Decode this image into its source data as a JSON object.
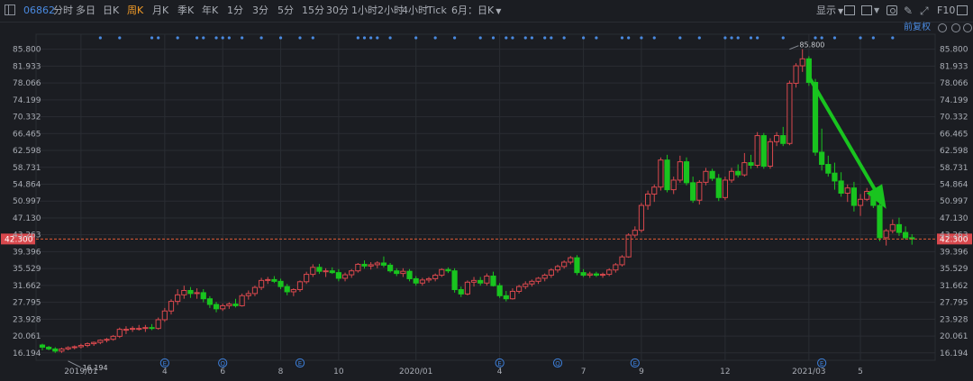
{
  "toolbar": {
    "code": "06862",
    "periods": [
      "分时",
      "多日",
      "日K",
      "周K",
      "月K",
      "季K",
      "年K",
      "1分",
      "3分",
      "5分",
      "15分",
      "30分",
      "1小时",
      "2小时",
      "4小时",
      "Tick"
    ],
    "active_period": "周K",
    "range_label": "6月：日K",
    "display_label": "显示",
    "f10_label": "F10",
    "fq_label": "前复权"
  },
  "chart_data": {
    "type": "candlestick",
    "title": "",
    "xlabel": "",
    "ylabel": "",
    "ylim": [
      14.5,
      88.0
    ],
    "y_ticks": [
      85.8,
      81.933,
      78.066,
      74.199,
      70.332,
      66.465,
      62.598,
      58.731,
      54.864,
      50.997,
      47.13,
      43.263,
      39.396,
      35.529,
      31.662,
      27.795,
      23.928,
      20.061,
      16.194
    ],
    "y_tick_labels": [
      "85.800",
      "81.933",
      "78.066",
      "74.199",
      "70.332",
      "66.465",
      "62.598",
      "58.731",
      "54.864",
      "50.997",
      "47.130",
      "43.263",
      "39.396",
      "35.529",
      "31.662",
      "27.795",
      "23.928",
      "20.061",
      "16.194"
    ],
    "x_ticks": [
      {
        "label": "2019/01",
        "week": 6
      },
      {
        "label": "4",
        "week": 19
      },
      {
        "label": "6",
        "week": 28
      },
      {
        "label": "8",
        "week": 37
      },
      {
        "label": "10",
        "week": 46
      },
      {
        "label": "2020/01",
        "week": 58
      },
      {
        "label": "4",
        "week": 71
      },
      {
        "label": "7",
        "week": 84
      },
      {
        "label": "9",
        "week": 93
      },
      {
        "label": "12",
        "week": 106
      },
      {
        "label": "2021/03",
        "week": 119
      },
      {
        "label": "5",
        "week": 127
      }
    ],
    "current_price": 42.3,
    "current_price_label": "42.300",
    "max_annotation": {
      "label": "85.800",
      "week": 116,
      "value": 85.8
    },
    "min_annotation": {
      "label": "16.194",
      "week": 4,
      "value": 16.194
    },
    "event_markers": [
      {
        "type": "E",
        "week": 19
      },
      {
        "type": "Q",
        "week": 28
      },
      {
        "type": "E",
        "week": 40
      },
      {
        "type": "E",
        "week": 71
      },
      {
        "type": "Q",
        "week": 80
      },
      {
        "type": "E",
        "week": 92
      },
      {
        "type": "E",
        "week": 121
      }
    ],
    "dividend_markers": [
      9,
      12,
      17,
      18,
      21,
      24,
      25,
      27,
      28,
      29,
      31,
      34,
      37,
      40,
      42,
      49,
      50,
      51,
      52,
      54,
      58,
      61,
      64,
      68,
      70,
      72,
      73,
      75,
      76,
      78,
      79,
      81,
      84,
      86,
      90,
      91,
      93,
      95,
      99,
      102,
      106,
      107,
      108,
      110,
      111,
      115,
      120,
      121,
      123,
      127,
      129,
      132
    ],
    "candles": [
      {
        "o": 18.0,
        "h": 18.3,
        "l": 16.8,
        "c": 17.5
      },
      {
        "o": 17.5,
        "h": 17.8,
        "l": 16.8,
        "c": 17.1
      },
      {
        "o": 17.1,
        "h": 17.5,
        "l": 16.2,
        "c": 16.6
      },
      {
        "o": 16.6,
        "h": 17.4,
        "l": 16.2,
        "c": 17.1
      },
      {
        "o": 17.1,
        "h": 17.7,
        "l": 16.8,
        "c": 17.4
      },
      {
        "o": 17.4,
        "h": 17.9,
        "l": 17.0,
        "c": 17.6
      },
      {
        "o": 17.6,
        "h": 18.3,
        "l": 17.2,
        "c": 17.9
      },
      {
        "o": 17.9,
        "h": 18.6,
        "l": 17.5,
        "c": 18.3
      },
      {
        "o": 18.3,
        "h": 18.8,
        "l": 17.8,
        "c": 18.6
      },
      {
        "o": 18.6,
        "h": 19.3,
        "l": 18.2,
        "c": 19.1
      },
      {
        "o": 19.1,
        "h": 19.6,
        "l": 18.6,
        "c": 19.3
      },
      {
        "o": 19.3,
        "h": 20.3,
        "l": 19.0,
        "c": 20.0
      },
      {
        "o": 20.0,
        "h": 22.0,
        "l": 19.6,
        "c": 21.6
      },
      {
        "o": 21.6,
        "h": 22.3,
        "l": 20.5,
        "c": 21.6
      },
      {
        "o": 21.6,
        "h": 22.3,
        "l": 21.0,
        "c": 21.8
      },
      {
        "o": 21.8,
        "h": 22.6,
        "l": 21.3,
        "c": 21.8
      },
      {
        "o": 21.8,
        "h": 22.6,
        "l": 21.0,
        "c": 22.0
      },
      {
        "o": 22.0,
        "h": 22.8,
        "l": 21.4,
        "c": 21.8
      },
      {
        "o": 21.8,
        "h": 24.3,
        "l": 21.5,
        "c": 23.8
      },
      {
        "o": 23.8,
        "h": 26.5,
        "l": 23.3,
        "c": 25.8
      },
      {
        "o": 25.8,
        "h": 28.5,
        "l": 25.0,
        "c": 28.0
      },
      {
        "o": 28.0,
        "h": 30.8,
        "l": 27.2,
        "c": 29.5
      },
      {
        "o": 29.5,
        "h": 31.6,
        "l": 28.6,
        "c": 30.5
      },
      {
        "o": 30.5,
        "h": 31.3,
        "l": 28.8,
        "c": 29.8
      },
      {
        "o": 29.8,
        "h": 31.0,
        "l": 28.6,
        "c": 30.0
      },
      {
        "o": 30.0,
        "h": 30.8,
        "l": 27.8,
        "c": 28.6
      },
      {
        "o": 28.6,
        "h": 29.2,
        "l": 26.5,
        "c": 27.3
      },
      {
        "o": 27.3,
        "h": 27.9,
        "l": 25.5,
        "c": 26.3
      },
      {
        "o": 26.3,
        "h": 27.5,
        "l": 25.8,
        "c": 27.0
      },
      {
        "o": 27.0,
        "h": 27.8,
        "l": 26.3,
        "c": 27.4
      },
      {
        "o": 27.4,
        "h": 28.6,
        "l": 26.6,
        "c": 27.0
      },
      {
        "o": 27.0,
        "h": 29.8,
        "l": 26.8,
        "c": 29.3
      },
      {
        "o": 29.3,
        "h": 30.5,
        "l": 28.4,
        "c": 29.8
      },
      {
        "o": 29.8,
        "h": 31.6,
        "l": 29.2,
        "c": 31.2
      },
      {
        "o": 31.2,
        "h": 33.4,
        "l": 30.6,
        "c": 32.8
      },
      {
        "o": 32.8,
        "h": 33.6,
        "l": 32.0,
        "c": 33.0
      },
      {
        "o": 33.0,
        "h": 33.8,
        "l": 32.2,
        "c": 32.6
      },
      {
        "o": 32.6,
        "h": 33.2,
        "l": 30.8,
        "c": 31.4
      },
      {
        "o": 31.4,
        "h": 32.0,
        "l": 29.4,
        "c": 30.2
      },
      {
        "o": 30.2,
        "h": 31.0,
        "l": 29.2,
        "c": 30.7
      },
      {
        "o": 30.7,
        "h": 32.8,
        "l": 30.2,
        "c": 32.5
      },
      {
        "o": 32.5,
        "h": 34.8,
        "l": 32.0,
        "c": 34.2
      },
      {
        "o": 34.2,
        "h": 36.5,
        "l": 33.6,
        "c": 35.8
      },
      {
        "o": 35.8,
        "h": 36.6,
        "l": 34.3,
        "c": 34.9
      },
      {
        "o": 34.9,
        "h": 35.6,
        "l": 33.6,
        "c": 35.0
      },
      {
        "o": 35.0,
        "h": 35.8,
        "l": 34.3,
        "c": 34.6
      },
      {
        "o": 34.6,
        "h": 35.4,
        "l": 32.6,
        "c": 33.3
      },
      {
        "o": 33.3,
        "h": 34.6,
        "l": 32.6,
        "c": 34.1
      },
      {
        "o": 34.1,
        "h": 35.4,
        "l": 33.4,
        "c": 35.0
      },
      {
        "o": 35.0,
        "h": 36.8,
        "l": 34.6,
        "c": 36.5
      },
      {
        "o": 36.5,
        "h": 37.4,
        "l": 35.5,
        "c": 36.1
      },
      {
        "o": 36.1,
        "h": 37.0,
        "l": 35.3,
        "c": 36.4
      },
      {
        "o": 36.4,
        "h": 37.2,
        "l": 35.6,
        "c": 36.8
      },
      {
        "o": 36.8,
        "h": 38.3,
        "l": 35.8,
        "c": 36.3
      },
      {
        "o": 36.3,
        "h": 36.8,
        "l": 34.6,
        "c": 35.0
      },
      {
        "o": 35.0,
        "h": 35.6,
        "l": 33.8,
        "c": 34.4
      },
      {
        "o": 34.4,
        "h": 35.6,
        "l": 33.6,
        "c": 34.9
      },
      {
        "o": 34.9,
        "h": 35.4,
        "l": 32.6,
        "c": 33.2
      },
      {
        "o": 33.2,
        "h": 33.8,
        "l": 31.6,
        "c": 32.2
      },
      {
        "o": 32.2,
        "h": 33.4,
        "l": 31.6,
        "c": 32.9
      },
      {
        "o": 32.9,
        "h": 33.6,
        "l": 32.3,
        "c": 33.2
      },
      {
        "o": 33.2,
        "h": 34.4,
        "l": 32.6,
        "c": 34.0
      },
      {
        "o": 34.0,
        "h": 35.6,
        "l": 33.6,
        "c": 35.3
      },
      {
        "o": 35.3,
        "h": 35.8,
        "l": 34.5,
        "c": 35.0
      },
      {
        "o": 35.0,
        "h": 35.6,
        "l": 30.0,
        "c": 30.7
      },
      {
        "o": 30.7,
        "h": 31.4,
        "l": 29.0,
        "c": 29.7
      },
      {
        "o": 29.7,
        "h": 32.8,
        "l": 29.4,
        "c": 32.4
      },
      {
        "o": 32.4,
        "h": 33.6,
        "l": 31.4,
        "c": 32.8
      },
      {
        "o": 32.8,
        "h": 33.6,
        "l": 31.6,
        "c": 32.2
      },
      {
        "o": 32.2,
        "h": 34.4,
        "l": 31.6,
        "c": 33.8
      },
      {
        "o": 33.8,
        "h": 34.8,
        "l": 31.4,
        "c": 31.6
      },
      {
        "o": 31.6,
        "h": 32.2,
        "l": 28.8,
        "c": 29.3
      },
      {
        "o": 29.3,
        "h": 30.4,
        "l": 28.0,
        "c": 28.6
      },
      {
        "o": 28.6,
        "h": 31.0,
        "l": 28.4,
        "c": 30.3
      },
      {
        "o": 30.3,
        "h": 31.8,
        "l": 29.8,
        "c": 31.4
      },
      {
        "o": 31.4,
        "h": 32.6,
        "l": 30.8,
        "c": 32.0
      },
      {
        "o": 32.0,
        "h": 33.0,
        "l": 31.4,
        "c": 32.6
      },
      {
        "o": 32.6,
        "h": 33.6,
        "l": 32.0,
        "c": 33.3
      },
      {
        "o": 33.3,
        "h": 34.4,
        "l": 32.6,
        "c": 34.0
      },
      {
        "o": 34.0,
        "h": 35.6,
        "l": 33.4,
        "c": 35.2
      },
      {
        "o": 35.2,
        "h": 36.4,
        "l": 34.6,
        "c": 36.0
      },
      {
        "o": 36.0,
        "h": 37.4,
        "l": 35.5,
        "c": 37.0
      },
      {
        "o": 37.0,
        "h": 38.4,
        "l": 36.5,
        "c": 38.0
      },
      {
        "o": 38.0,
        "h": 38.6,
        "l": 34.0,
        "c": 34.6
      },
      {
        "o": 34.6,
        "h": 35.4,
        "l": 33.6,
        "c": 34.0
      },
      {
        "o": 34.0,
        "h": 34.8,
        "l": 33.4,
        "c": 34.3
      },
      {
        "o": 34.3,
        "h": 34.8,
        "l": 33.6,
        "c": 34.0
      },
      {
        "o": 34.0,
        "h": 34.6,
        "l": 33.4,
        "c": 34.2
      },
      {
        "o": 34.2,
        "h": 35.6,
        "l": 33.8,
        "c": 35.2
      },
      {
        "o": 35.2,
        "h": 36.8,
        "l": 34.6,
        "c": 36.4
      },
      {
        "o": 36.4,
        "h": 38.6,
        "l": 36.0,
        "c": 38.2
      },
      {
        "o": 38.2,
        "h": 43.6,
        "l": 38.0,
        "c": 43.2
      },
      {
        "o": 43.2,
        "h": 45.2,
        "l": 42.6,
        "c": 44.3
      },
      {
        "o": 44.3,
        "h": 50.6,
        "l": 43.8,
        "c": 50.0
      },
      {
        "o": 50.0,
        "h": 53.4,
        "l": 49.0,
        "c": 52.6
      },
      {
        "o": 52.6,
        "h": 54.8,
        "l": 50.8,
        "c": 54.2
      },
      {
        "o": 54.2,
        "h": 61.0,
        "l": 53.4,
        "c": 60.4
      },
      {
        "o": 60.4,
        "h": 61.6,
        "l": 53.0,
        "c": 53.6
      },
      {
        "o": 53.6,
        "h": 56.6,
        "l": 52.6,
        "c": 55.8
      },
      {
        "o": 55.8,
        "h": 61.4,
        "l": 55.2,
        "c": 60.0
      },
      {
        "o": 60.0,
        "h": 61.0,
        "l": 54.6,
        "c": 55.2
      },
      {
        "o": 55.2,
        "h": 56.6,
        "l": 50.6,
        "c": 51.2
      },
      {
        "o": 51.2,
        "h": 55.8,
        "l": 50.2,
        "c": 55.3
      },
      {
        "o": 55.3,
        "h": 58.6,
        "l": 54.6,
        "c": 57.8
      },
      {
        "o": 57.8,
        "h": 58.4,
        "l": 55.6,
        "c": 56.2
      },
      {
        "o": 56.2,
        "h": 57.2,
        "l": 51.0,
        "c": 51.8
      },
      {
        "o": 51.8,
        "h": 56.6,
        "l": 51.2,
        "c": 55.8
      },
      {
        "o": 55.8,
        "h": 58.6,
        "l": 55.2,
        "c": 57.8
      },
      {
        "o": 57.8,
        "h": 59.4,
        "l": 56.4,
        "c": 57.0
      },
      {
        "o": 57.0,
        "h": 62.0,
        "l": 56.6,
        "c": 59.8
      },
      {
        "o": 59.8,
        "h": 61.6,
        "l": 58.4,
        "c": 59.2
      },
      {
        "o": 59.2,
        "h": 66.8,
        "l": 58.6,
        "c": 66.0
      },
      {
        "o": 66.0,
        "h": 66.6,
        "l": 58.4,
        "c": 59.0
      },
      {
        "o": 59.0,
        "h": 65.4,
        "l": 58.4,
        "c": 64.6
      },
      {
        "o": 64.6,
        "h": 66.8,
        "l": 63.6,
        "c": 66.0
      },
      {
        "o": 66.0,
        "h": 68.0,
        "l": 63.6,
        "c": 64.2
      },
      {
        "o": 64.2,
        "h": 78.6,
        "l": 63.8,
        "c": 78.0
      },
      {
        "o": 78.0,
        "h": 82.6,
        "l": 77.0,
        "c": 82.0
      },
      {
        "o": 82.0,
        "h": 85.8,
        "l": 80.6,
        "c": 83.6
      },
      {
        "o": 83.6,
        "h": 84.2,
        "l": 77.4,
        "c": 78.2
      },
      {
        "o": 78.2,
        "h": 79.0,
        "l": 61.4,
        "c": 62.2
      },
      {
        "o": 62.2,
        "h": 67.6,
        "l": 58.0,
        "c": 59.4
      },
      {
        "o": 59.4,
        "h": 61.4,
        "l": 56.6,
        "c": 57.4
      },
      {
        "o": 57.4,
        "h": 59.8,
        "l": 53.6,
        "c": 55.6
      },
      {
        "o": 55.6,
        "h": 57.6,
        "l": 52.0,
        "c": 52.8
      },
      {
        "o": 52.8,
        "h": 54.8,
        "l": 50.8,
        "c": 54.0
      },
      {
        "o": 54.0,
        "h": 55.4,
        "l": 48.6,
        "c": 50.0
      },
      {
        "o": 50.0,
        "h": 52.6,
        "l": 47.6,
        "c": 51.4
      },
      {
        "o": 51.4,
        "h": 54.0,
        "l": 51.0,
        "c": 53.2
      },
      {
        "o": 53.2,
        "h": 54.0,
        "l": 49.4,
        "c": 50.0
      },
      {
        "o": 50.0,
        "h": 51.2,
        "l": 41.8,
        "c": 42.6
      },
      {
        "o": 42.6,
        "h": 44.6,
        "l": 40.8,
        "c": 44.2
      },
      {
        "o": 44.2,
        "h": 46.8,
        "l": 43.6,
        "c": 45.6
      },
      {
        "o": 45.6,
        "h": 47.2,
        "l": 43.0,
        "c": 43.8
      },
      {
        "o": 43.8,
        "h": 45.2,
        "l": 42.2,
        "c": 42.6
      },
      {
        "o": 42.6,
        "h": 43.4,
        "l": 41.0,
        "c": 42.3
      }
    ],
    "trend_arrows": [
      {
        "from": {
          "week": 119,
          "value": 79.5
        },
        "to": {
          "week": 131,
          "value": 49.2
        },
        "color": "#19c41f"
      }
    ],
    "colors": {
      "up": "#d8484d",
      "down": "#19c41f",
      "background": "#1b1d22",
      "grid": "#2a2d33",
      "price_line": "#e05a35",
      "price_tag": "#d8484d",
      "marker": "#3d7fd9",
      "dividend_dot": "#4a8ae0"
    },
    "grid": true,
    "legend": "none"
  }
}
